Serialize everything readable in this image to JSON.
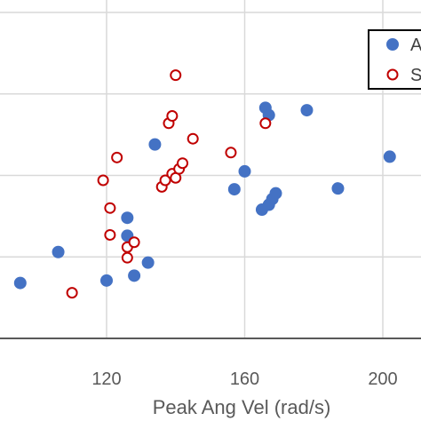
{
  "chart_data": {
    "type": "scatter",
    "xlabel": "Peak Ang Vel (rad/s)",
    "ylabel": "",
    "title": "",
    "xlim": [
      85,
      212
    ],
    "ylim": [
      0,
      5
    ],
    "x_ticks": [
      120,
      160,
      200
    ],
    "y_ticks": [
      1,
      2,
      3,
      4
    ],
    "grid": true,
    "legend_position": "top-right",
    "colors": {
      "series_a": "#4472C4",
      "series_s": "#C00000",
      "grid": "#D9D9D9",
      "axis": "#595959"
    },
    "legend": {
      "items": [
        "A",
        "S"
      ]
    },
    "series": [
      {
        "name": "A",
        "marker": "filled-circle",
        "points": [
          [
            95,
            0.68
          ],
          [
            106,
            1.06
          ],
          [
            120,
            0.71
          ],
          [
            126,
            1.48
          ],
          [
            126,
            1.26
          ],
          [
            128,
            0.77
          ],
          [
            132,
            0.93
          ],
          [
            134,
            2.38
          ],
          [
            157,
            1.83
          ],
          [
            160,
            2.05
          ],
          [
            165,
            1.58
          ],
          [
            167,
            1.64
          ],
          [
            168,
            1.71
          ],
          [
            169,
            1.78
          ],
          [
            166,
            2.83
          ],
          [
            167,
            2.74
          ],
          [
            178,
            2.8
          ],
          [
            187,
            1.84
          ],
          [
            202,
            2.23
          ]
        ]
      },
      {
        "name": "S",
        "marker": "hollow-circle",
        "points": [
          [
            110,
            0.56
          ],
          [
            119,
            1.94
          ],
          [
            121,
            1.6
          ],
          [
            121,
            1.27
          ],
          [
            123,
            2.22
          ],
          [
            126,
            1.12
          ],
          [
            126,
            0.99
          ],
          [
            128,
            1.18
          ],
          [
            136,
            1.86
          ],
          [
            137,
            1.94
          ],
          [
            138,
            2.64
          ],
          [
            139,
            2.73
          ],
          [
            139,
            2.02
          ],
          [
            140,
            1.97
          ],
          [
            141,
            2.08
          ],
          [
            142,
            2.15
          ],
          [
            140,
            3.23
          ],
          [
            145,
            2.45
          ],
          [
            156,
            2.28
          ],
          [
            166,
            2.64
          ]
        ]
      }
    ]
  }
}
